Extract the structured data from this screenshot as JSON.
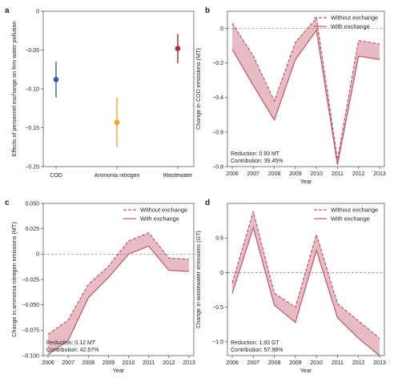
{
  "colors": {
    "cod": "#3a5aa8",
    "ammonia": "#f5a31a",
    "wastewater": "#b5272d",
    "line": "#c0556a",
    "fill": "#e8bcc4",
    "zero": "#888888"
  },
  "chart_data": [
    {
      "panel": "a",
      "type": "scatter",
      "ylabel": "Effects of personnel exchange on firm water pollution",
      "categories": [
        "COD",
        "Ammonia nitrogen",
        "Wastewater"
      ],
      "points": [
        {
          "category": "COD",
          "estimate": -0.088,
          "ci": [
            -0.111,
            -0.065
          ]
        },
        {
          "category": "Ammonia nitrogen",
          "estimate": -0.143,
          "ci": [
            -0.175,
            -0.111
          ]
        },
        {
          "category": "Wastewater",
          "estimate": -0.048,
          "ci": [
            -0.067,
            -0.029
          ]
        }
      ],
      "ylim": [
        -0.2,
        0.0
      ],
      "yticks": [
        0.0,
        -0.05,
        -0.1,
        -0.15,
        -0.2
      ],
      "ytick_labels": [
        "0",
        "−0.05",
        "−0.10",
        "−0.15",
        "−0.20"
      ],
      "grid": false
    },
    {
      "panel": "b",
      "type": "line",
      "xlabel": "Year",
      "ylabel": "Change in COD emissions (MT)",
      "x": [
        2006,
        2007,
        2008,
        2009,
        2010,
        2011,
        2012,
        2013
      ],
      "series": [
        {
          "name": "Without exchange",
          "style": "dashed",
          "values": [
            0.03,
            -0.16,
            -0.42,
            -0.08,
            0.06,
            -0.76,
            -0.07,
            -0.09
          ]
        },
        {
          "name": "With exchange",
          "style": "solid",
          "values": [
            -0.12,
            -0.33,
            -0.53,
            -0.18,
            -0.01,
            -0.79,
            -0.16,
            -0.18
          ]
        }
      ],
      "ylim": [
        -0.8,
        0.1
      ],
      "yticks": [
        0,
        -0.2,
        -0.4,
        -0.6,
        -0.8
      ],
      "ytick_labels": [
        "0",
        "−0.2",
        "−0.4",
        "−0.6",
        "−0.8"
      ],
      "annotation": [
        "Reduction: 0.93 MT",
        "Contribution: 39.45%"
      ],
      "legend": "top-right"
    },
    {
      "panel": "c",
      "type": "line",
      "xlabel": "Year",
      "ylabel": "Change in ammonia nitrogen emissions (MT)",
      "x": [
        2006,
        2007,
        2008,
        2009,
        2010,
        2011,
        2012,
        2013
      ],
      "series": [
        {
          "name": "Without exchange",
          "style": "dashed",
          "values": [
            -0.079,
            -0.065,
            -0.03,
            -0.012,
            0.013,
            0.021,
            -0.004,
            -0.005
          ]
        },
        {
          "name": "With exchange",
          "style": "solid",
          "values": [
            -0.099,
            -0.085,
            -0.043,
            -0.023,
            0.0,
            0.008,
            -0.016,
            -0.017
          ]
        }
      ],
      "ylim": [
        -0.1,
        0.05
      ],
      "yticks": [
        0.05,
        0.025,
        0,
        -0.025,
        -0.05,
        -0.075,
        -0.1
      ],
      "ytick_labels": [
        "0.050",
        "0.025",
        "0",
        "−0.025",
        "−0.050",
        "−0.075",
        "−0.100"
      ],
      "annotation": [
        "Reduction: 0.12 MT",
        "Contribution: 42.57%"
      ],
      "legend": "top-right"
    },
    {
      "panel": "d",
      "type": "line",
      "xlabel": "Year",
      "ylabel": "Change in wastewater emissions (GT)",
      "x": [
        2006,
        2007,
        2008,
        2009,
        2010,
        2011,
        2012,
        2013
      ],
      "series": [
        {
          "name": "Without exchange",
          "style": "dashed",
          "values": [
            -0.15,
            0.88,
            -0.3,
            -0.5,
            0.55,
            -0.45,
            -0.7,
            -0.95
          ]
        },
        {
          "name": "With exchange",
          "style": "solid",
          "values": [
            -0.3,
            0.65,
            -0.47,
            -0.72,
            0.32,
            -0.65,
            -0.95,
            -1.2
          ]
        }
      ],
      "ylim": [
        -1.2,
        1.0
      ],
      "yticks": [
        0.5,
        0,
        -0.5,
        -1.0
      ],
      "ytick_labels": [
        "0.5",
        "0",
        "−0.5",
        "−1.0"
      ],
      "annotation": [
        "Reduction: 1.93 GT",
        "Contribution: 57.98%"
      ],
      "legend": "top-right"
    }
  ]
}
